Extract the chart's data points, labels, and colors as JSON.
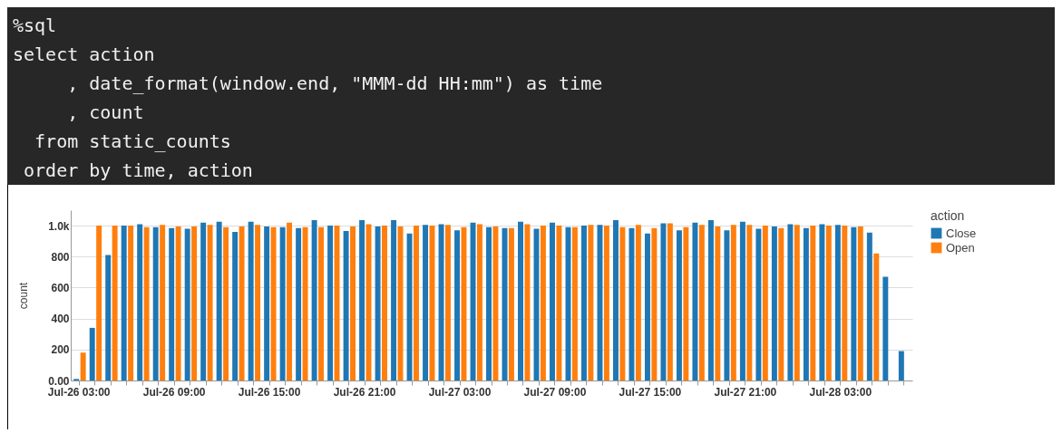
{
  "chart_data": {
    "type": "bar",
    "annotations": [
      "%sql",
      "select action",
      "     , date_format(window.end, \"MMM-dd HH:mm\") as time",
      "     , count",
      "  from static_counts",
      " order by time, action"
    ],
    "ylabel": "count",
    "legend_title": "action",
    "categories": [
      "Jul-26 03:00",
      null,
      null,
      null,
      null,
      null,
      "Jul-26 09:00",
      null,
      null,
      null,
      null,
      null,
      "Jul-26 15:00",
      null,
      null,
      null,
      null,
      null,
      "Jul-26 21:00",
      null,
      null,
      null,
      null,
      null,
      "Jul-27 03:00",
      null,
      null,
      null,
      null,
      null,
      "Jul-27 09:00",
      null,
      null,
      null,
      null,
      null,
      "Jul-27 15:00",
      null,
      null,
      null,
      null,
      null,
      "Jul-27 21:00",
      null,
      null,
      null,
      null,
      null,
      "Jul-28 03:00",
      null,
      null,
      null,
      null
    ],
    "series": [
      {
        "name": "Close",
        "color": "#1f77b4",
        "values": [
          10,
          340,
          810,
          1000,
          1010,
          990,
          985,
          980,
          1020,
          1025,
          960,
          1025,
          995,
          990,
          985,
          1035,
          1000,
          965,
          1035,
          995,
          1035,
          950,
          1005,
          1010,
          970,
          1020,
          990,
          985,
          1025,
          980,
          1020,
          990,
          1000,
          1005,
          1035,
          985,
          950,
          1015,
          970,
          1020,
          1035,
          970,
          1025,
          980,
          995,
          1010,
          985,
          1010,
          1005,
          990,
          955,
          670,
          190
        ]
      },
      {
        "name": "Open",
        "color": "#ff7f0e",
        "values": [
          180,
          1000,
          1000,
          1000,
          990,
          1005,
          995,
          995,
          1005,
          990,
          995,
          1005,
          990,
          1020,
          990,
          990,
          1000,
          995,
          1010,
          1000,
          995,
          1000,
          1000,
          1005,
          990,
          1010,
          995,
          985,
          1010,
          1000,
          1000,
          990,
          1005,
          1000,
          990,
          1005,
          985,
          1015,
          990,
          1005,
          995,
          1005,
          1005,
          1000,
          985,
          1005,
          1000,
          1000,
          1000,
          995,
          820,
          null,
          null
        ]
      }
    ],
    "ylim": [
      0,
      1100
    ],
    "yticks": [
      {
        "value": 0,
        "label": "0.00"
      },
      200,
      400,
      600,
      800,
      {
        "value": 1000,
        "label": "1.0k"
      }
    ],
    "grid": "y",
    "legend": "right"
  }
}
